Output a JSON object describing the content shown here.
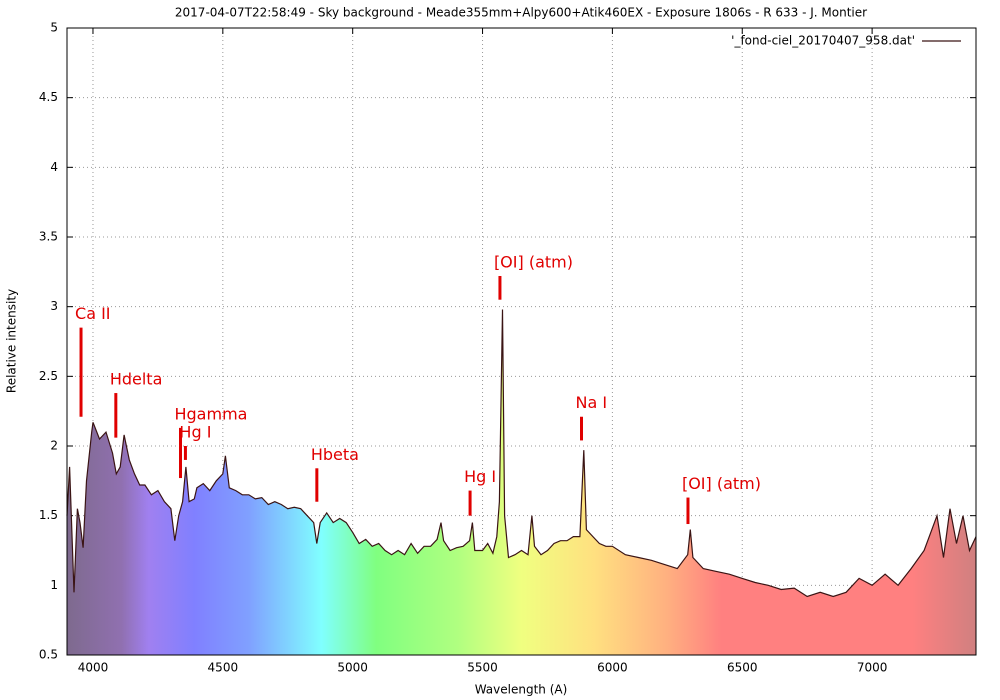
{
  "chart_data": {
    "type": "line",
    "title": "2017-04-07T22:58:49 - Sky background - Meade355mm+Alpy600+Atik460EX - Exposure 1806s - R 633 - J. Montier",
    "xlabel": "Wavelength (A)",
    "ylabel": "Relative intensity",
    "xlim": [
      3900,
      7400
    ],
    "ylim": [
      0.5,
      5
    ],
    "xticks": [
      4000,
      4500,
      5000,
      5500,
      6000,
      6500,
      7000
    ],
    "yticks": [
      0.5,
      1,
      1.5,
      2,
      2.5,
      3,
      3.5,
      4,
      4.5,
      5
    ],
    "grid": true,
    "legend": "top-right",
    "x": [
      3900,
      3910,
      3927,
      3940,
      3950,
      3962,
      3975,
      3995,
      4000,
      4025,
      4050,
      4075,
      4090,
      4105,
      4120,
      4140,
      4160,
      4180,
      4200,
      4225,
      4250,
      4275,
      4300,
      4315,
      4330,
      4345,
      4358,
      4370,
      4390,
      4400,
      4425,
      4450,
      4475,
      4500,
      4510,
      4525,
      4550,
      4575,
      4600,
      4625,
      4650,
      4675,
      4700,
      4725,
      4750,
      4775,
      4800,
      4825,
      4850,
      4862,
      4875,
      4900,
      4925,
      4950,
      4975,
      5000,
      5025,
      5050,
      5075,
      5100,
      5125,
      5150,
      5175,
      5200,
      5225,
      5250,
      5275,
      5300,
      5325,
      5340,
      5350,
      5375,
      5400,
      5425,
      5450,
      5461,
      5470,
      5500,
      5520,
      5540,
      5555,
      5565,
      5577,
      5585,
      5600,
      5625,
      5650,
      5675,
      5690,
      5700,
      5725,
      5750,
      5775,
      5800,
      5825,
      5850,
      5875,
      5890,
      5900,
      5925,
      5950,
      5975,
      6000,
      6050,
      6100,
      6150,
      6200,
      6250,
      6290,
      6300,
      6310,
      6350,
      6400,
      6450,
      6500,
      6550,
      6600,
      6650,
      6700,
      6750,
      6800,
      6850,
      6900,
      6950,
      7000,
      7050,
      7100,
      7150,
      7200,
      7250,
      7275,
      7300,
      7325,
      7350,
      7375,
      7400
    ],
    "series": [
      {
        "name": "'_fond-ciel_20170407_958.dat'",
        "color": "#3a1414",
        "values": [
          1.5,
          1.85,
          0.95,
          1.55,
          1.45,
          1.27,
          1.75,
          2.1,
          2.17,
          2.05,
          2.1,
          1.95,
          1.8,
          1.85,
          2.08,
          1.9,
          1.8,
          1.72,
          1.72,
          1.65,
          1.68,
          1.6,
          1.55,
          1.32,
          1.5,
          1.6,
          1.85,
          1.6,
          1.62,
          1.7,
          1.73,
          1.68,
          1.75,
          1.8,
          1.93,
          1.7,
          1.68,
          1.65,
          1.65,
          1.62,
          1.63,
          1.58,
          1.6,
          1.58,
          1.55,
          1.56,
          1.55,
          1.5,
          1.45,
          1.3,
          1.45,
          1.52,
          1.45,
          1.48,
          1.45,
          1.38,
          1.3,
          1.33,
          1.28,
          1.3,
          1.25,
          1.22,
          1.25,
          1.22,
          1.3,
          1.23,
          1.28,
          1.28,
          1.33,
          1.45,
          1.32,
          1.25,
          1.27,
          1.28,
          1.32,
          1.45,
          1.25,
          1.25,
          1.3,
          1.23,
          1.35,
          1.6,
          2.98,
          1.5,
          1.2,
          1.22,
          1.25,
          1.22,
          1.5,
          1.28,
          1.22,
          1.25,
          1.3,
          1.32,
          1.32,
          1.35,
          1.35,
          1.97,
          1.4,
          1.35,
          1.3,
          1.28,
          1.28,
          1.22,
          1.2,
          1.18,
          1.15,
          1.12,
          1.22,
          1.4,
          1.2,
          1.12,
          1.1,
          1.08,
          1.05,
          1.02,
          1.0,
          0.97,
          0.98,
          0.92,
          0.95,
          0.92,
          0.95,
          1.05,
          1.0,
          1.08,
          1.0,
          1.12,
          1.25,
          1.5,
          1.2,
          1.55,
          1.3,
          1.5,
          1.25,
          1.35
        ]
      }
    ],
    "annotations": [
      {
        "text": "Ca II",
        "x": 3954,
        "y": [
          2.21,
          2.85
        ]
      },
      {
        "text": "Hdelta",
        "x": 4088,
        "y": [
          2.06,
          2.38
        ]
      },
      {
        "text": "Hgamma",
        "x": 4337,
        "y": [
          1.77,
          2.13
        ]
      },
      {
        "text": "Hg I",
        "x": 4356,
        "y": [
          1.9,
          2.0
        ]
      },
      {
        "text": "Hbeta",
        "x": 4862,
        "y": [
          1.6,
          1.84
        ]
      },
      {
        "text": "Hg I",
        "x": 5452,
        "y": [
          1.5,
          1.68
        ]
      },
      {
        "text": "[OI] (atm)",
        "x": 5567,
        "y": [
          3.05,
          3.22
        ]
      },
      {
        "text": "Na I",
        "x": 5881,
        "y": [
          2.04,
          2.21
        ]
      },
      {
        "text": "[OI] (atm)",
        "x": 6291,
        "y": [
          1.44,
          1.63
        ]
      }
    ],
    "annotation_color": "#e00000"
  }
}
